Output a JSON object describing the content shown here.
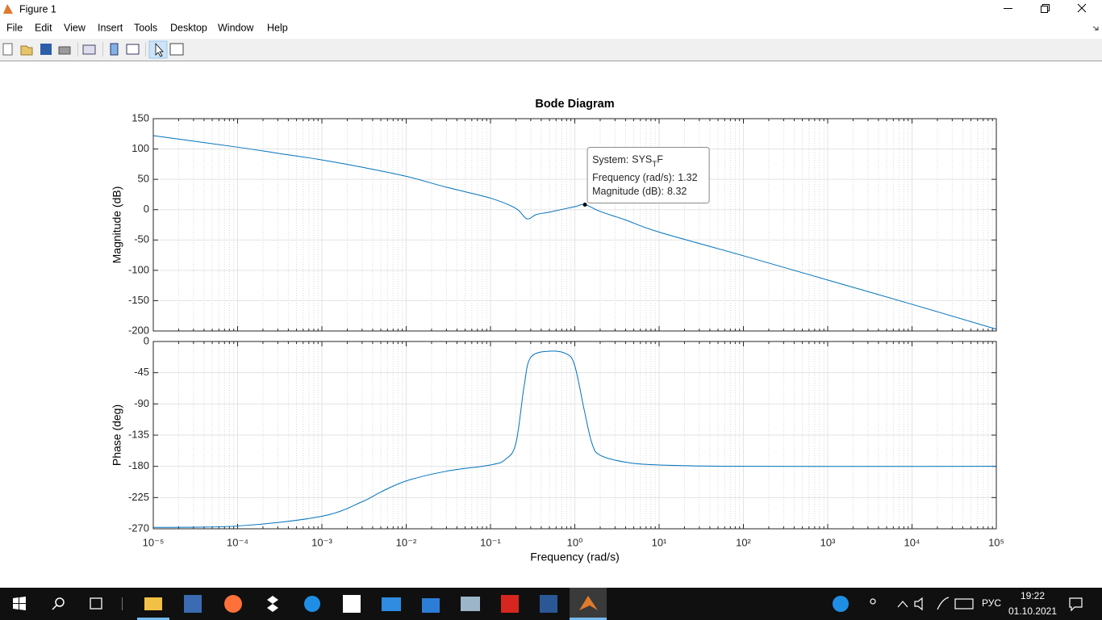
{
  "window": {
    "title": "Figure 1"
  },
  "menu": [
    "File",
    "Edit",
    "View",
    "Insert",
    "Tools",
    "Desktop",
    "Window",
    "Help"
  ],
  "chart_data": [
    {
      "type": "line",
      "title": "Bode Diagram",
      "ylabel": "Magnitude (dB)",
      "xscale": "log",
      "grid": true,
      "x": [
        1e-05,
        0.0001,
        0.0003,
        0.001,
        0.003,
        0.01,
        0.03,
        0.1,
        0.2,
        0.27,
        0.35,
        0.5,
        1,
        1.32,
        2,
        4,
        10,
        100,
        1000,
        10000,
        100000
      ],
      "series": [
        {
          "color": "#0072bd",
          "values": [
            122,
            103,
            93,
            82,
            70,
            55,
            37,
            19,
            2,
            -15,
            -8,
            -4,
            5,
            8.32,
            -3,
            -17,
            -37,
            -76,
            -116,
            -156,
            -197
          ]
        }
      ],
      "xlim": [
        1e-05,
        100000
      ],
      "xticks": [
        1e-05,
        0.0001,
        0.001,
        0.01,
        0.1,
        1,
        10,
        100,
        1000,
        10000,
        100000
      ],
      "ylim": [
        -200,
        150
      ],
      "yticks": [
        -200,
        -150,
        -100,
        -50,
        0,
        50,
        100,
        150
      ],
      "datatip": {
        "system_label": "System:",
        "system": "SYS_TF",
        "frequency_label": "Frequency (rad/s):",
        "frequency": 1.32,
        "magnitude_label": "Magnitude (dB):",
        "magnitude": 8.32
      }
    },
    {
      "type": "line",
      "ylabel": "Phase (deg)",
      "xlabel": "Frequency (rad/s)",
      "xscale": "log",
      "grid": true,
      "x": [
        1e-05,
        0.0001,
        0.001,
        0.003,
        0.005,
        0.01,
        0.03,
        0.1,
        0.15,
        0.2,
        0.25,
        0.3,
        0.5,
        0.8,
        1,
        1.3,
        1.6,
        2,
        4,
        10,
        100,
        100000
      ],
      "series": [
        {
          "color": "#0072bd",
          "values": [
            -268,
            -266,
            -252,
            -231,
            -217,
            -201,
            -187,
            -178,
            -170,
            -147,
            -65,
            -23,
            -14,
            -18,
            -35,
            -100,
            -147,
            -164,
            -174,
            -178,
            -180,
            -180
          ]
        }
      ],
      "xlim": [
        1e-05,
        100000
      ],
      "xticks": [
        {
          "value": 1e-05,
          "label": "10⁻⁵"
        },
        {
          "value": 0.0001,
          "label": "10⁻⁴"
        },
        {
          "value": 0.001,
          "label": "10⁻³"
        },
        {
          "value": 0.01,
          "label": "10⁻²"
        },
        {
          "value": 0.1,
          "label": "10⁻¹"
        },
        {
          "value": 1,
          "label": "10⁰"
        },
        {
          "value": 10,
          "label": "10¹"
        },
        {
          "value": 100,
          "label": "10²"
        },
        {
          "value": 1000,
          "label": "10³"
        },
        {
          "value": 10000,
          "label": "10⁴"
        },
        {
          "value": 100000,
          "label": "10⁵"
        }
      ],
      "ylim": [
        -270,
        0
      ],
      "yticks": [
        -270,
        -225,
        -180,
        -135,
        -90,
        -45,
        0
      ]
    }
  ],
  "taskbar": {
    "language": "РУС",
    "time": "19:22",
    "date": "01.10.2021"
  }
}
